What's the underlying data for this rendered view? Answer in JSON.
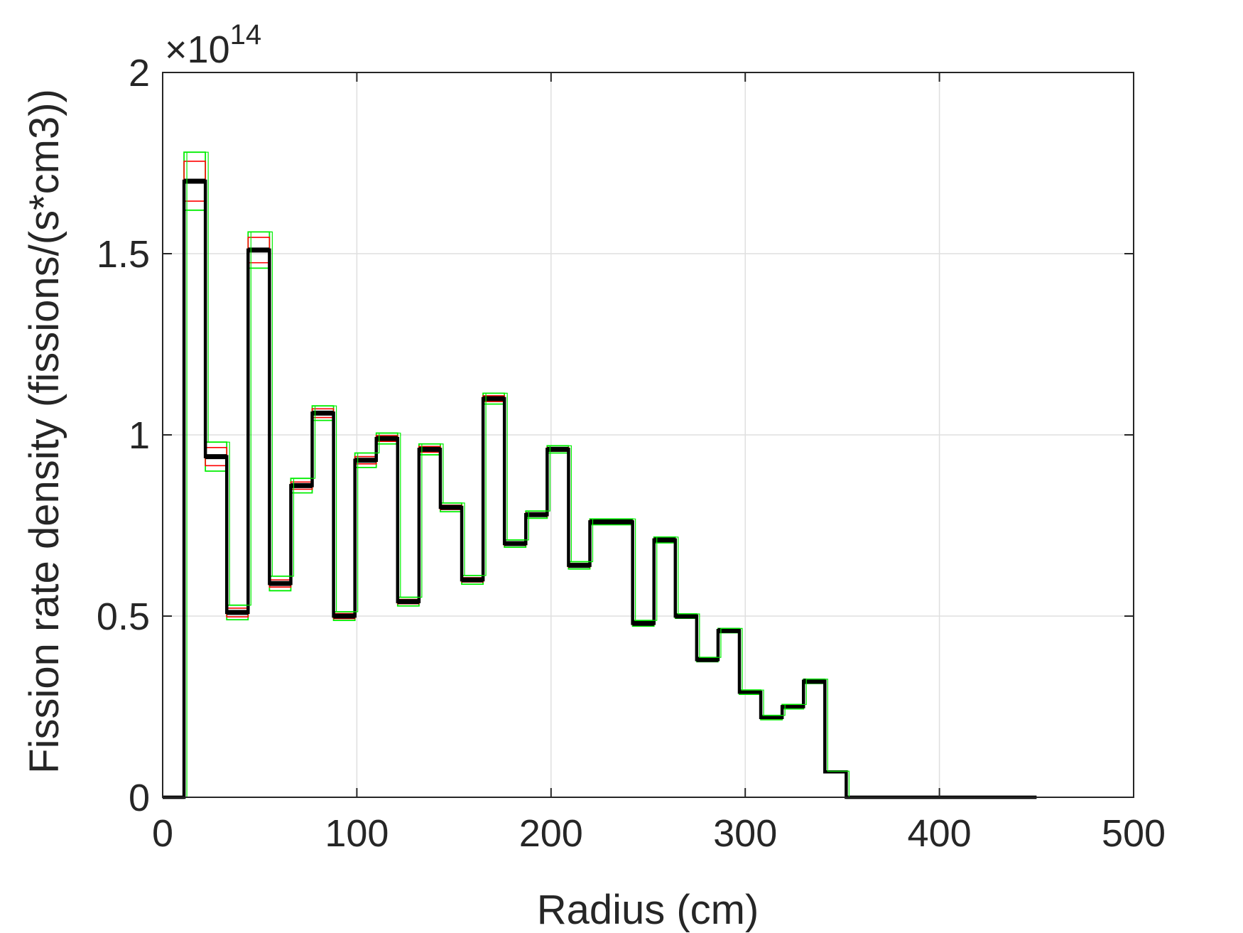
{
  "chart_data": {
    "type": "line",
    "xlabel": "Radius (cm)",
    "ylabel": "Fission rate density (fissions/(s*cm3))",
    "exponent_base": "×10",
    "exponent_power": "14",
    "xlim": [
      0,
      500
    ],
    "ylim": [
      0,
      2
    ],
    "xticks": [
      "0",
      "100",
      "200",
      "300",
      "400",
      "500"
    ],
    "yticks": [
      "0",
      "0.5",
      "1",
      "1.5",
      "2"
    ],
    "grid": true,
    "edges": [
      0,
      11,
      22,
      33,
      44,
      55,
      66,
      77,
      88,
      99,
      110,
      121,
      132,
      143,
      154,
      165,
      176,
      187,
      198,
      209,
      220,
      231,
      242,
      253,
      264,
      275,
      286,
      297,
      308,
      319,
      330,
      341,
      352,
      363,
      374,
      385,
      396,
      407,
      418,
      429,
      440,
      450
    ],
    "values": [
      0,
      1.7,
      0.94,
      0.51,
      1.51,
      0.59,
      0.86,
      1.06,
      0.5,
      0.93,
      0.99,
      0.54,
      0.96,
      0.8,
      0.6,
      1.1,
      0.7,
      0.78,
      0.96,
      0.64,
      0.76,
      0.76,
      0.48,
      0.71,
      0.5,
      0.38,
      0.46,
      0.29,
      0.22,
      0.25,
      0.32,
      0.07,
      0,
      0,
      0,
      0,
      0,
      0,
      0,
      0,
      0
    ],
    "err1": [
      0,
      0.055,
      0.025,
      0.012,
      0.035,
      0.01,
      0.01,
      0.012,
      0.007,
      0.01,
      0.008,
      0.006,
      0.008,
      0.006,
      0.006,
      0.008,
      0.005,
      0.005,
      0.005,
      0.005,
      0.004,
      0.004,
      0.004,
      0.004,
      0.003,
      0.003,
      0.003,
      0.003,
      0.003,
      0.003,
      0.003,
      0,
      0,
      0,
      0,
      0,
      0,
      0,
      0,
      0,
      0
    ],
    "err2": [
      0,
      0.08,
      0.04,
      0.02,
      0.05,
      0.02,
      0.02,
      0.02,
      0.012,
      0.02,
      0.015,
      0.012,
      0.015,
      0.012,
      0.012,
      0.015,
      0.01,
      0.01,
      0.01,
      0.01,
      0.008,
      0.008,
      0.008,
      0.008,
      0.006,
      0.006,
      0.006,
      0.006,
      0.006,
      0.006,
      0.006,
      0.002,
      0,
      0,
      0,
      0,
      0,
      0,
      0,
      0,
      0
    ],
    "colors": {
      "main": "#000000",
      "band1": "#ff0000",
      "band2": "#00ee00",
      "axis": "#262626",
      "grid": "#dfdfdf"
    }
  }
}
